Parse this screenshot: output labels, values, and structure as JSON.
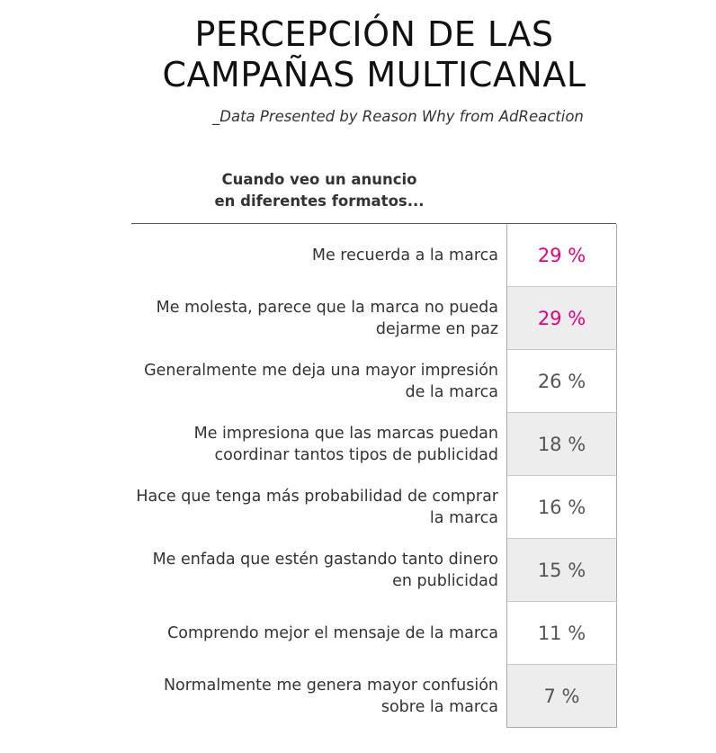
{
  "title_line1": "PERCEPCIÓN DE LAS",
  "title_line2": "CAMPAÑAS MULTICANAL",
  "subtitle": "_Data Presented by Reason Why from AdReaction",
  "colors": {
    "highlight": "#e6007e",
    "normal": "#555555"
  },
  "chart_data": {
    "type": "table",
    "title": "PERCEPCIÓN DE LAS CAMPAÑAS MULTICANAL",
    "column_header_line1": "Cuando veo un anuncio",
    "column_header_line2": "en diferentes formatos...",
    "unit": "%",
    "rows": [
      {
        "label": "Me recuerda a la marca",
        "value": 29,
        "display": "29 %",
        "highlight": true
      },
      {
        "label": "Me molesta, parece que la marca no pueda dejarme en paz",
        "value": 29,
        "display": "29 %",
        "highlight": true
      },
      {
        "label": "Generalmente me deja una mayor impresión de la marca",
        "value": 26,
        "display": "26 %",
        "highlight": false
      },
      {
        "label": "Me impresiona que las marcas puedan coordinar tantos tipos de publicidad",
        "value": 18,
        "display": "18 %",
        "highlight": false
      },
      {
        "label": "Hace que tenga más probabilidad de comprar la marca",
        "value": 16,
        "display": "16 %",
        "highlight": false
      },
      {
        "label": "Me enfada que estén gastando tanto dinero en publicidad",
        "value": 15,
        "display": "15 %",
        "highlight": false
      },
      {
        "label": "Comprendo mejor el mensaje de la marca",
        "value": 11,
        "display": "11 %",
        "highlight": false
      },
      {
        "label": "Normalmente me genera mayor confusión sobre la marca",
        "value": 7,
        "display": "7 %",
        "highlight": false
      }
    ]
  }
}
